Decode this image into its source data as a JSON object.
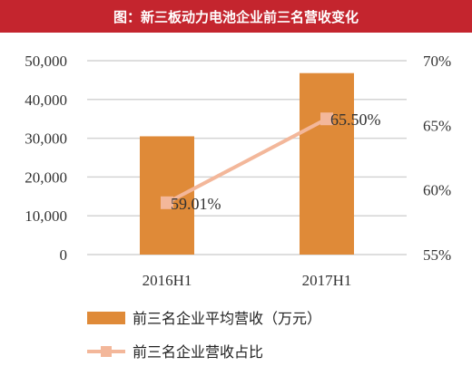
{
  "header": {
    "title": "图：新三板动力电池企业前三名营收变化"
  },
  "colors": {
    "title_bg": "#c4252e",
    "bar": "#df8a38",
    "line": "#f3b79a",
    "grid": "#d4d4d4"
  },
  "chart_data": {
    "type": "bar",
    "title": "图：新三板动力电池企业前三名营收变化",
    "categories": [
      "2016H1",
      "2017H1"
    ],
    "series": [
      {
        "name": "前三名企业平均营收（万元）",
        "type": "bar",
        "axis": "left",
        "values": [
          30500,
          46800
        ]
      },
      {
        "name": "前三名企业营收占比",
        "type": "line",
        "axis": "right",
        "values": [
          59.01,
          65.5
        ],
        "labels": [
          "59.01%",
          "65.50%"
        ]
      }
    ],
    "y_left": {
      "ylim": [
        0,
        50000
      ],
      "ticks": [
        "0",
        "10,000",
        "20,000",
        "30,000",
        "40,000",
        "50,000"
      ]
    },
    "y_right": {
      "ylim": [
        55,
        70
      ],
      "ticks": [
        "55%",
        "60%",
        "65%",
        "70%"
      ]
    },
    "grid": true,
    "legend": "bottom"
  }
}
